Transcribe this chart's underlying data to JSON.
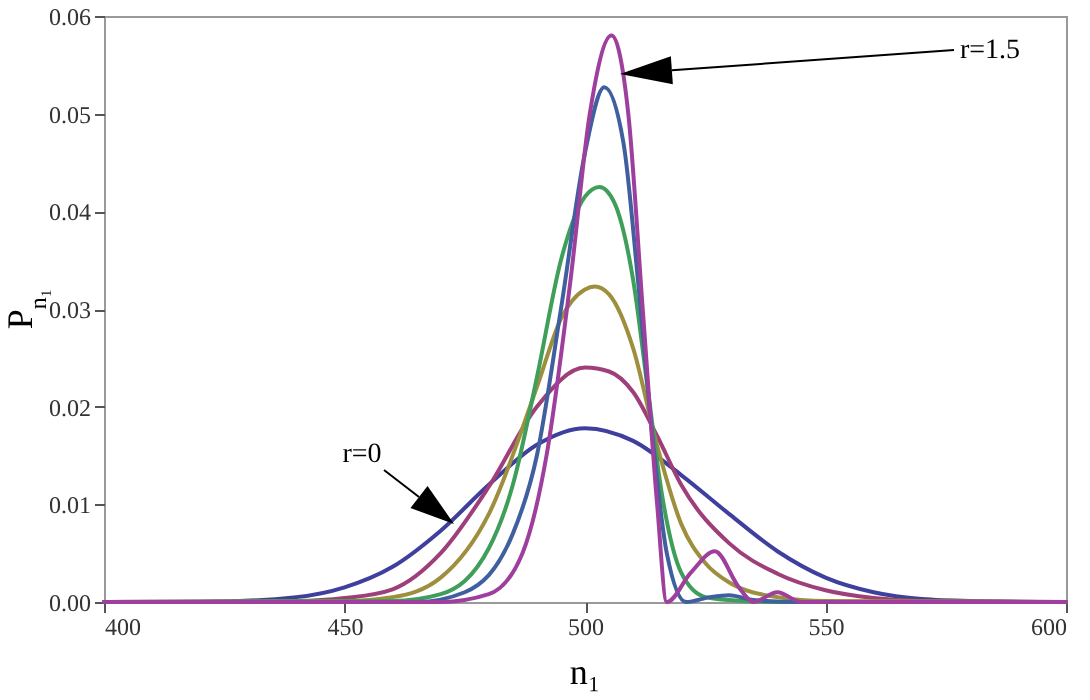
{
  "chart_data": {
    "type": "line",
    "xlabel": "n₁",
    "ylabel": "P$_{n₁}$",
    "xlim": [
      400,
      600
    ],
    "xticks": [
      400,
      450,
      500,
      550,
      600
    ],
    "ylim": [
      0,
      0.06
    ],
    "yticks": [
      {
        "value": 0,
        "label": "0.00"
      },
      {
        "value": 0.01,
        "label": "0.01"
      },
      {
        "value": 0.02,
        "label": "0.02"
      },
      {
        "value": 0.03,
        "label": "0.03"
      },
      {
        "value": 0.04,
        "label": "0.04"
      },
      {
        "value": 0.05,
        "label": "0.05"
      },
      {
        "value": 0.06,
        "label": "0.06"
      }
    ],
    "grid": false,
    "marker": "none",
    "line_style": "solid",
    "annotations": [
      "r=0",
      "r=1.5"
    ],
    "series": [
      {
        "color": "#3f3f9e",
        "x": [
          400,
          420,
          440,
          450,
          460,
          470,
          480,
          490,
          500,
          510,
          520,
          530,
          540,
          550,
          560,
          570,
          580,
          600
        ],
        "values": [
          0,
          0,
          0.0005,
          0.0015,
          0.0036,
          0.0073,
          0.012,
          0.0161,
          0.0178,
          0.0165,
          0.013,
          0.009,
          0.0052,
          0.0025,
          0.001,
          0.0003,
          0.0001,
          0
        ]
      },
      {
        "color": "#9e3f7a",
        "x": [
          400,
          440,
          450,
          460,
          470,
          480,
          490,
          500,
          505,
          510,
          515,
          520,
          530,
          540,
          550,
          560,
          570,
          600
        ],
        "values": [
          0,
          0.0001,
          0.0004,
          0.0013,
          0.005,
          0.0118,
          0.02,
          0.024,
          0.0236,
          0.0215,
          0.017,
          0.012,
          0.006,
          0.0029,
          0.0012,
          0.0004,
          0.0001,
          0
        ]
      },
      {
        "color": "#9e8f3f",
        "x": [
          400,
          450,
          460,
          470,
          480,
          490,
          495,
          500,
          502,
          505,
          510,
          515,
          520,
          525,
          530,
          540,
          550,
          600
        ],
        "values": [
          0,
          0.0001,
          0.0005,
          0.0025,
          0.009,
          0.022,
          0.029,
          0.032,
          0.0323,
          0.0315,
          0.026,
          0.016,
          0.008,
          0.004,
          0.002,
          0.0005,
          0.0001,
          0
        ]
      },
      {
        "color": "#3f9e5a",
        "x": [
          400,
          460,
          470,
          480,
          485,
          490,
          495,
          500,
          503,
          506,
          510,
          513,
          516,
          520,
          525,
          530,
          540,
          600
        ],
        "values": [
          0,
          0.0001,
          0.0008,
          0.0055,
          0.012,
          0.023,
          0.035,
          0.0415,
          0.0425,
          0.041,
          0.033,
          0.022,
          0.011,
          0.003,
          0.0005,
          0.0002,
          0,
          0
        ]
      },
      {
        "color": "#3f5f9e",
        "x": [
          400,
          465,
          475,
          485,
          490,
          495,
          500,
          504,
          508,
          511,
          514,
          517,
          521,
          526,
          530,
          535,
          545,
          600
        ],
        "values": [
          0,
          0,
          0.001,
          0.007,
          0.015,
          0.03,
          0.046,
          0.0527,
          0.047,
          0.033,
          0.017,
          0.005,
          0,
          0.0005,
          0.0007,
          0.0002,
          0,
          0
        ]
      },
      {
        "color": "#9e3f9e",
        "x": [
          400,
          470,
          480,
          487,
          492,
          497,
          501,
          505.5,
          509,
          512,
          515,
          517,
          522,
          527,
          532,
          535,
          540,
          545,
          600
        ],
        "values": [
          0,
          0,
          0.0008,
          0.005,
          0.015,
          0.033,
          0.05,
          0.058,
          0.05,
          0.03,
          0.01,
          0,
          0.003,
          0.0052,
          0.0015,
          0,
          0.001,
          0,
          0
        ]
      }
    ]
  }
}
